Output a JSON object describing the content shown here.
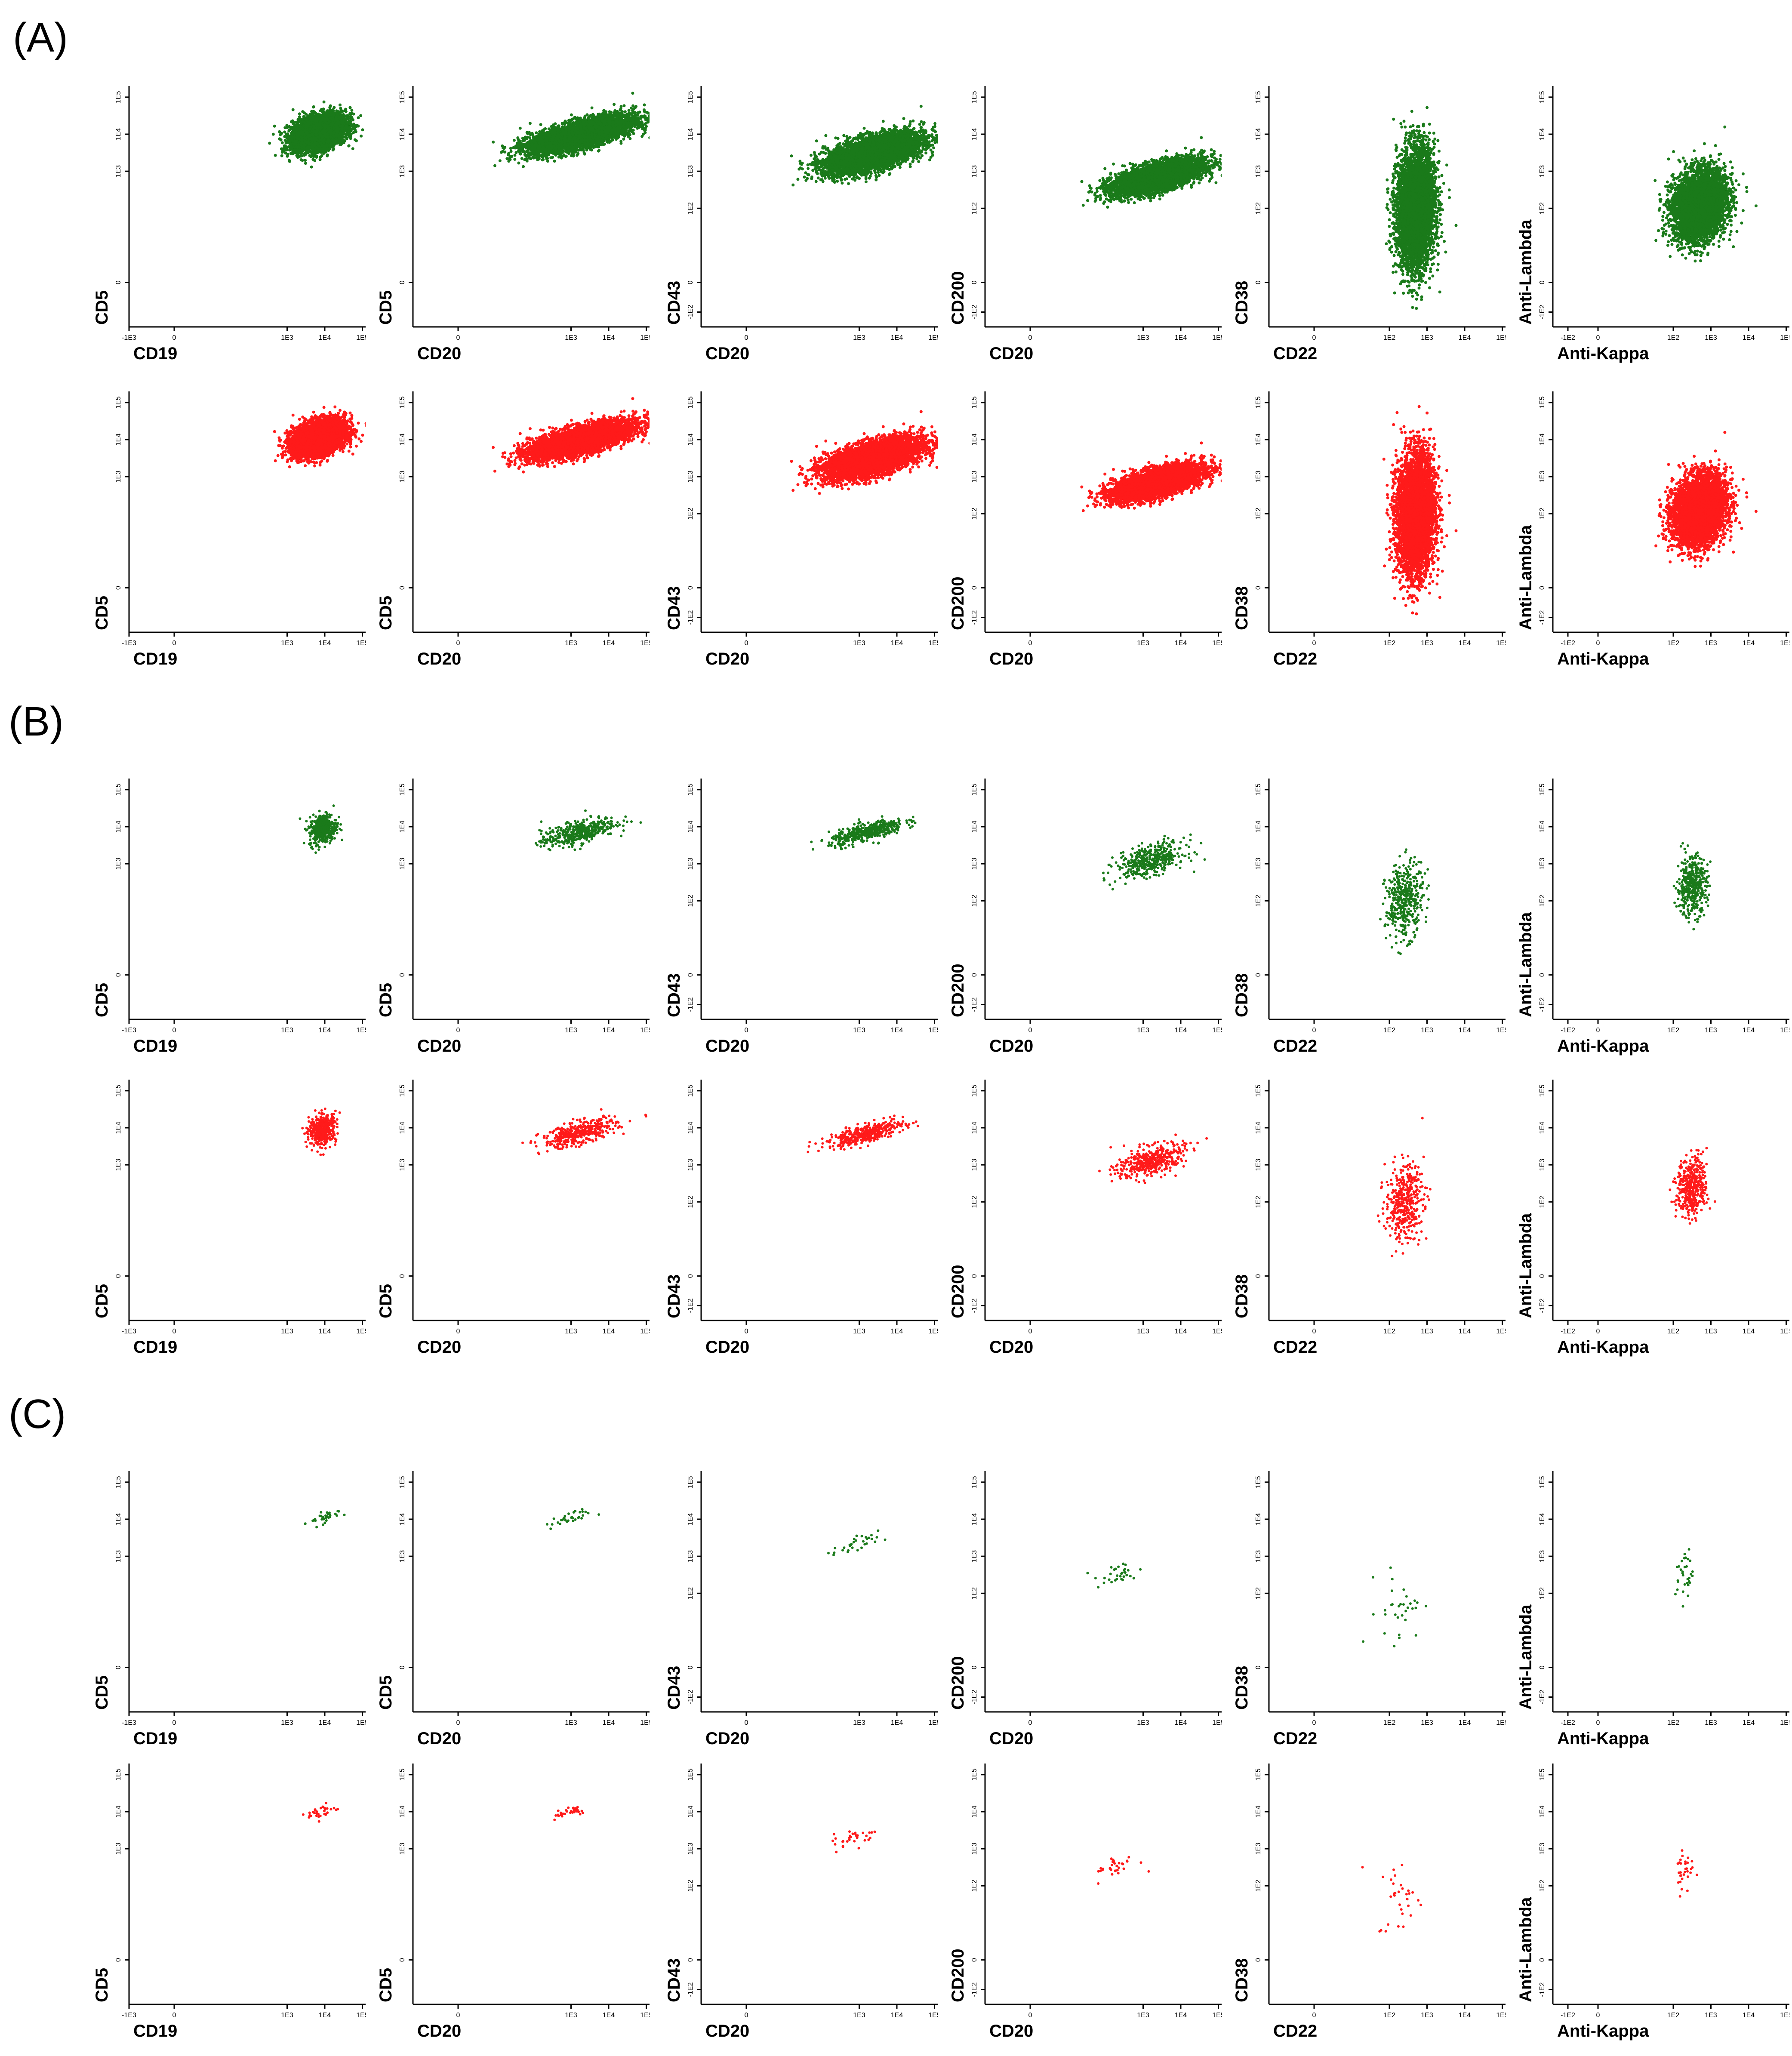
{
  "figure": {
    "panels": [
      {
        "label": "(A)",
        "events": 4500,
        "row_events": [
          4500,
          4500
        ]
      },
      {
        "label": "(B)",
        "events": 420,
        "row_events": [
          420,
          420
        ]
      },
      {
        "label": "(C)",
        "events": 32,
        "row_events": [
          32,
          32
        ]
      }
    ],
    "row_colors": [
      "#1a7a1a",
      "#ff1a1a"
    ],
    "columns": [
      {
        "xlabel": "CD19",
        "ylabel": "CD5",
        "xticks": [
          "-1E3",
          "0",
          "1E3",
          "1E4",
          "1E5"
        ],
        "yticks": [
          "0",
          "1E3",
          "1E4",
          "1E5"
        ]
      },
      {
        "xlabel": "CD20",
        "ylabel": "CD5",
        "xticks": [
          "0",
          "1E3",
          "1E4",
          "1E5"
        ],
        "yticks": [
          "0",
          "1E3",
          "1E4",
          "1E5"
        ]
      },
      {
        "xlabel": "CD20",
        "ylabel": "CD43",
        "xticks": [
          "0",
          "1E3",
          "1E4",
          "1E5"
        ],
        "yticks": [
          "-1E2",
          "0",
          "1E2",
          "1E3",
          "1E4",
          "1E5"
        ]
      },
      {
        "xlabel": "CD20",
        "ylabel": "CD200",
        "xticks": [
          "0",
          "1E3",
          "1E4",
          "1E5"
        ],
        "yticks": [
          "-1E2",
          "0",
          "1E2",
          "1E3",
          "1E4",
          "1E5"
        ]
      },
      {
        "xlabel": "CD22",
        "ylabel": "CD38",
        "xticks": [
          "0",
          "1E2",
          "1E3",
          "1E4",
          "1E5"
        ],
        "yticks": [
          "0",
          "1E2",
          "1E3",
          "1E4",
          "1E5"
        ]
      },
      {
        "xlabel": "Anti-Kappa",
        "ylabel": "Anti-Lambda",
        "xticks": [
          "-1E2",
          "0",
          "1E2",
          "1E3",
          "1E4",
          "1E5"
        ],
        "yticks": [
          "-1E2",
          "0",
          "1E2",
          "1E3",
          "1E4",
          "1E5"
        ]
      }
    ]
  },
  "chart_data": [
    {
      "type": "scatter",
      "panel": "(A)",
      "color": "#1a7a1a",
      "xlabel": "CD19",
      "ylabel": "CD5",
      "n_points": 4500,
      "x_range_log": [
        -3.2,
        5.2
      ],
      "y_range_log": [
        -1.0,
        5.0
      ],
      "cluster": {
        "x_center": 3.85,
        "y_center": 4.05,
        "x_spread": 0.35,
        "y_spread": 0.22
      }
    },
    {
      "type": "scatter",
      "panel": "(A)",
      "color": "#1a7a1a",
      "xlabel": "CD20",
      "ylabel": "CD5",
      "n_points": 4500,
      "cluster": {
        "x_center": 3.3,
        "y_center": 4.0,
        "x_spread": 0.7,
        "y_spread": 0.18
      }
    },
    {
      "type": "scatter",
      "panel": "(A)",
      "color": "#1a7a1a",
      "xlabel": "CD20",
      "ylabel": "CD43",
      "n_points": 4500,
      "cluster": {
        "x_center": 3.4,
        "y_center": 3.5,
        "x_spread": 0.65,
        "y_spread": 0.22
      }
    },
    {
      "type": "scatter",
      "panel": "(A)",
      "color": "#1a7a1a",
      "xlabel": "CD20",
      "ylabel": "CD200",
      "n_points": 4500,
      "cluster": {
        "x_center": 3.4,
        "y_center": 2.85,
        "x_spread": 0.6,
        "y_spread": 0.18
      }
    },
    {
      "type": "scatter",
      "panel": "(A)",
      "color": "#1a7a1a",
      "xlabel": "CD22",
      "ylabel": "CD38",
      "n_points": 4500,
      "cluster": {
        "x_center": 2.7,
        "y_center": 2.0,
        "x_spread": 0.25,
        "y_spread": 0.8
      }
    },
    {
      "type": "scatter",
      "panel": "(A)",
      "color": "#1a7a1a",
      "xlabel": "Anti-Kappa",
      "ylabel": "Anti-Lambda",
      "n_points": 4500,
      "cluster": {
        "x_center": 2.7,
        "y_center": 2.1,
        "x_spread": 0.35,
        "y_spread": 0.45
      }
    },
    {
      "type": "scatter",
      "panel": "(A)",
      "color": "#ff1a1a",
      "xlabel": "CD19",
      "ylabel": "CD5",
      "n_points": 4500,
      "cluster": {
        "x_center": 3.85,
        "y_center": 4.05,
        "x_spread": 0.35,
        "y_spread": 0.22
      }
    },
    {
      "type": "scatter",
      "panel": "(A)",
      "color": "#ff1a1a",
      "xlabel": "CD20",
      "ylabel": "CD5",
      "n_points": 4500,
      "cluster": {
        "x_center": 3.3,
        "y_center": 4.0,
        "x_spread": 0.7,
        "y_spread": 0.18
      }
    },
    {
      "type": "scatter",
      "panel": "(A)",
      "color": "#ff1a1a",
      "xlabel": "CD20",
      "ylabel": "CD43",
      "n_points": 4500,
      "cluster": {
        "x_center": 3.4,
        "y_center": 3.5,
        "x_spread": 0.65,
        "y_spread": 0.22
      }
    },
    {
      "type": "scatter",
      "panel": "(A)",
      "color": "#ff1a1a",
      "xlabel": "CD20",
      "ylabel": "CD200",
      "n_points": 4500,
      "cluster": {
        "x_center": 3.4,
        "y_center": 2.85,
        "x_spread": 0.6,
        "y_spread": 0.18
      }
    },
    {
      "type": "scatter",
      "panel": "(A)",
      "color": "#ff1a1a",
      "xlabel": "CD22",
      "ylabel": "CD38",
      "n_points": 4500,
      "cluster": {
        "x_center": 2.7,
        "y_center": 2.0,
        "x_spread": 0.25,
        "y_spread": 0.8
      }
    },
    {
      "type": "scatter",
      "panel": "(A)",
      "color": "#ff1a1a",
      "xlabel": "Anti-Kappa",
      "ylabel": "Anti-Lambda",
      "n_points": 4500,
      "cluster": {
        "x_center": 2.7,
        "y_center": 2.1,
        "x_spread": 0.35,
        "y_spread": 0.45
      }
    },
    {
      "type": "scatter",
      "panel": "(B)",
      "color": "#1a7a1a",
      "xlabel": "CD19",
      "ylabel": "CD5",
      "n_points": 420,
      "cluster": {
        "x_center": 3.95,
        "y_center": 3.95,
        "x_spread": 0.18,
        "y_spread": 0.2
      }
    },
    {
      "type": "scatter",
      "panel": "(B)",
      "color": "#1a7a1a",
      "xlabel": "CD20",
      "ylabel": "CD5",
      "n_points": 420,
      "cluster": {
        "x_center": 3.2,
        "y_center": 3.85,
        "x_spread": 0.5,
        "y_spread": 0.15
      }
    },
    {
      "type": "scatter",
      "panel": "(B)",
      "color": "#1a7a1a",
      "xlabel": "CD20",
      "ylabel": "CD43",
      "n_points": 420,
      "cluster": {
        "x_center": 3.2,
        "y_center": 3.85,
        "x_spread": 0.5,
        "y_spread": 0.12
      }
    },
    {
      "type": "scatter",
      "panel": "(B)",
      "color": "#1a7a1a",
      "xlabel": "CD20",
      "ylabel": "CD200",
      "n_points": 420,
      "cluster": {
        "x_center": 3.2,
        "y_center": 3.1,
        "x_spread": 0.45,
        "y_spread": 0.2
      }
    },
    {
      "type": "scatter",
      "panel": "(B)",
      "color": "#1a7a1a",
      "xlabel": "CD22",
      "ylabel": "CD38",
      "n_points": 420,
      "cluster": {
        "x_center": 2.4,
        "y_center": 2.0,
        "x_spread": 0.25,
        "y_spread": 0.5
      }
    },
    {
      "type": "scatter",
      "panel": "(B)",
      "color": "#1a7a1a",
      "xlabel": "Anti-Kappa",
      "ylabel": "Anti-Lambda",
      "n_points": 420,
      "cluster": {
        "x_center": 2.5,
        "y_center": 2.4,
        "x_spread": 0.2,
        "y_spread": 0.4
      }
    },
    {
      "type": "scatter",
      "panel": "(B)",
      "color": "#ff1a1a",
      "xlabel": "CD19",
      "ylabel": "CD5",
      "n_points": 420,
      "cluster": {
        "x_center": 3.95,
        "y_center": 3.95,
        "x_spread": 0.18,
        "y_spread": 0.2
      }
    },
    {
      "type": "scatter",
      "panel": "(B)",
      "color": "#ff1a1a",
      "xlabel": "CD20",
      "ylabel": "CD5",
      "n_points": 420,
      "cluster": {
        "x_center": 3.2,
        "y_center": 3.85,
        "x_spread": 0.5,
        "y_spread": 0.15
      }
    },
    {
      "type": "scatter",
      "panel": "(B)",
      "color": "#ff1a1a",
      "xlabel": "CD20",
      "ylabel": "CD43",
      "n_points": 420,
      "cluster": {
        "x_center": 3.2,
        "y_center": 3.85,
        "x_spread": 0.5,
        "y_spread": 0.12
      }
    },
    {
      "type": "scatter",
      "panel": "(B)",
      "color": "#ff1a1a",
      "xlabel": "CD20",
      "ylabel": "CD200",
      "n_points": 420,
      "cluster": {
        "x_center": 3.2,
        "y_center": 3.1,
        "x_spread": 0.45,
        "y_spread": 0.2
      }
    },
    {
      "type": "scatter",
      "panel": "(B)",
      "color": "#ff1a1a",
      "xlabel": "CD22",
      "ylabel": "CD38",
      "n_points": 420,
      "cluster": {
        "x_center": 2.4,
        "y_center": 2.0,
        "x_spread": 0.25,
        "y_spread": 0.5
      }
    },
    {
      "type": "scatter",
      "panel": "(B)",
      "color": "#ff1a1a",
      "xlabel": "Anti-Kappa",
      "ylabel": "Anti-Lambda",
      "n_points": 420,
      "cluster": {
        "x_center": 2.5,
        "y_center": 2.4,
        "x_spread": 0.2,
        "y_spread": 0.4
      }
    },
    {
      "type": "scatter",
      "panel": "(C)",
      "color": "#1a7a1a",
      "xlabel": "CD19",
      "ylabel": "CD5",
      "n_points": 32,
      "cluster": {
        "x_center": 3.95,
        "y_center": 4.0,
        "x_spread": 0.2,
        "y_spread": 0.1
      }
    },
    {
      "type": "scatter",
      "panel": "(C)",
      "color": "#1a7a1a",
      "xlabel": "CD20",
      "ylabel": "CD5",
      "n_points": 32,
      "cluster": {
        "x_center": 2.9,
        "y_center": 4.0,
        "x_spread": 0.3,
        "y_spread": 0.08
      }
    },
    {
      "type": "scatter",
      "panel": "(C)",
      "color": "#1a7a1a",
      "xlabel": "CD20",
      "ylabel": "CD43",
      "n_points": 32,
      "cluster": {
        "x_center": 2.9,
        "y_center": 3.3,
        "x_spread": 0.3,
        "y_spread": 0.12
      }
    },
    {
      "type": "scatter",
      "panel": "(C)",
      "color": "#1a7a1a",
      "xlabel": "CD20",
      "ylabel": "CD200",
      "n_points": 32,
      "cluster": {
        "x_center": 2.3,
        "y_center": 2.5,
        "x_spread": 0.3,
        "y_spread": 0.15
      }
    },
    {
      "type": "scatter",
      "panel": "(C)",
      "color": "#1a7a1a",
      "xlabel": "CD22",
      "ylabel": "CD38",
      "n_points": 32,
      "cluster": {
        "x_center": 2.3,
        "y_center": 1.7,
        "x_spread": 0.3,
        "y_spread": 0.5
      }
    },
    {
      "type": "scatter",
      "panel": "(C)",
      "color": "#1a7a1a",
      "xlabel": "Anti-Kappa",
      "ylabel": "Anti-Lambda",
      "n_points": 32,
      "cluster": {
        "x_center": 2.3,
        "y_center": 2.5,
        "x_spread": 0.12,
        "y_spread": 0.35
      }
    },
    {
      "type": "scatter",
      "panel": "(C)",
      "color": "#ff1a1a",
      "xlabel": "CD19",
      "ylabel": "CD5",
      "n_points": 32,
      "cluster": {
        "x_center": 3.95,
        "y_center": 4.0,
        "x_spread": 0.2,
        "y_spread": 0.1
      }
    },
    {
      "type": "scatter",
      "panel": "(C)",
      "color": "#ff1a1a",
      "xlabel": "CD20",
      "ylabel": "CD5",
      "n_points": 32,
      "cluster": {
        "x_center": 2.9,
        "y_center": 4.0,
        "x_spread": 0.3,
        "y_spread": 0.08
      }
    },
    {
      "type": "scatter",
      "panel": "(C)",
      "color": "#ff1a1a",
      "xlabel": "CD20",
      "ylabel": "CD43",
      "n_points": 32,
      "cluster": {
        "x_center": 2.9,
        "y_center": 3.3,
        "x_spread": 0.3,
        "y_spread": 0.12
      }
    },
    {
      "type": "scatter",
      "panel": "(C)",
      "color": "#ff1a1a",
      "xlabel": "CD20",
      "ylabel": "CD200",
      "n_points": 32,
      "cluster": {
        "x_center": 2.3,
        "y_center": 2.5,
        "x_spread": 0.3,
        "y_spread": 0.15
      }
    },
    {
      "type": "scatter",
      "panel": "(C)",
      "color": "#ff1a1a",
      "xlabel": "CD22",
      "ylabel": "CD38",
      "n_points": 32,
      "cluster": {
        "x_center": 2.3,
        "y_center": 1.7,
        "x_spread": 0.3,
        "y_spread": 0.5
      }
    },
    {
      "type": "scatter",
      "panel": "(C)",
      "color": "#ff1a1a",
      "xlabel": "Anti-Kappa",
      "ylabel": "Anti-Lambda",
      "n_points": 32,
      "cluster": {
        "x_center": 2.3,
        "y_center": 2.5,
        "x_spread": 0.12,
        "y_spread": 0.35
      }
    }
  ]
}
